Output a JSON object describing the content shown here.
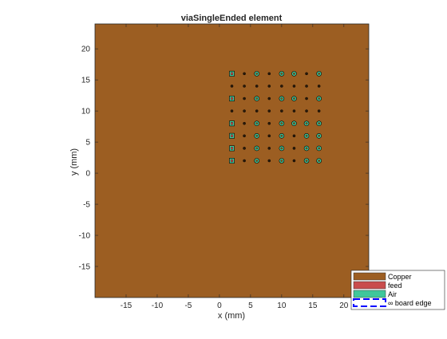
{
  "chart_data": {
    "type": "scatter",
    "title": "viaSingleEnded element",
    "xlabel": "x (mm)",
    "ylabel": "y (mm)",
    "xlim": [
      -20,
      24
    ],
    "ylim": [
      -20,
      24
    ],
    "x_ticks": [
      -15,
      -10,
      -5,
      0,
      5,
      10,
      15,
      20
    ],
    "y_ticks": [
      -15,
      -10,
      -5,
      0,
      5,
      10,
      15,
      20
    ],
    "board_fill": "#9c5e22",
    "via_grid": {
      "x": [
        2,
        4,
        6,
        8,
        10,
        12,
        14,
        16
      ],
      "y": [
        2,
        4,
        6,
        8,
        10,
        12,
        14,
        16
      ]
    },
    "vias": [
      {
        "x": 2,
        "y": 16,
        "type": "feed-air"
      },
      {
        "x": 4,
        "y": 16,
        "type": "pad"
      },
      {
        "x": 6,
        "y": 16,
        "type": "air"
      },
      {
        "x": 8,
        "y": 16,
        "type": "pad"
      },
      {
        "x": 10,
        "y": 16,
        "type": "air"
      },
      {
        "x": 12,
        "y": 16,
        "type": "air"
      },
      {
        "x": 14,
        "y": 16,
        "type": "pad"
      },
      {
        "x": 16,
        "y": 16,
        "type": "air"
      },
      {
        "x": 2,
        "y": 14,
        "type": "pad"
      },
      {
        "x": 4,
        "y": 14,
        "type": "pad"
      },
      {
        "x": 6,
        "y": 14,
        "type": "pad"
      },
      {
        "x": 8,
        "y": 14,
        "type": "pad"
      },
      {
        "x": 10,
        "y": 14,
        "type": "pad"
      },
      {
        "x": 12,
        "y": 14,
        "type": "pad"
      },
      {
        "x": 14,
        "y": 14,
        "type": "pad"
      },
      {
        "x": 16,
        "y": 14,
        "type": "pad"
      },
      {
        "x": 2,
        "y": 12,
        "type": "feed-air"
      },
      {
        "x": 4,
        "y": 12,
        "type": "pad"
      },
      {
        "x": 6,
        "y": 12,
        "type": "air"
      },
      {
        "x": 8,
        "y": 12,
        "type": "pad"
      },
      {
        "x": 10,
        "y": 12,
        "type": "air"
      },
      {
        "x": 12,
        "y": 12,
        "type": "air"
      },
      {
        "x": 14,
        "y": 12,
        "type": "pad"
      },
      {
        "x": 16,
        "y": 12,
        "type": "air"
      },
      {
        "x": 2,
        "y": 10,
        "type": "pad"
      },
      {
        "x": 4,
        "y": 10,
        "type": "pad"
      },
      {
        "x": 6,
        "y": 10,
        "type": "pad"
      },
      {
        "x": 8,
        "y": 10,
        "type": "pad"
      },
      {
        "x": 10,
        "y": 10,
        "type": "pad"
      },
      {
        "x": 12,
        "y": 10,
        "type": "pad"
      },
      {
        "x": 14,
        "y": 10,
        "type": "pad"
      },
      {
        "x": 16,
        "y": 10,
        "type": "pad"
      },
      {
        "x": 2,
        "y": 8,
        "type": "feed-air"
      },
      {
        "x": 4,
        "y": 8,
        "type": "pad"
      },
      {
        "x": 6,
        "y": 8,
        "type": "air"
      },
      {
        "x": 8,
        "y": 8,
        "type": "pad"
      },
      {
        "x": 10,
        "y": 8,
        "type": "air"
      },
      {
        "x": 12,
        "y": 8,
        "type": "air"
      },
      {
        "x": 14,
        "y": 8,
        "type": "air"
      },
      {
        "x": 16,
        "y": 8,
        "type": "air"
      },
      {
        "x": 2,
        "y": 6,
        "type": "feed-air"
      },
      {
        "x": 4,
        "y": 6,
        "type": "pad"
      },
      {
        "x": 6,
        "y": 6,
        "type": "air"
      },
      {
        "x": 8,
        "y": 6,
        "type": "pad"
      },
      {
        "x": 10,
        "y": 6,
        "type": "air"
      },
      {
        "x": 12,
        "y": 6,
        "type": "pad"
      },
      {
        "x": 14,
        "y": 6,
        "type": "air"
      },
      {
        "x": 16,
        "y": 6,
        "type": "air"
      },
      {
        "x": 2,
        "y": 4,
        "type": "feed-air"
      },
      {
        "x": 4,
        "y": 4,
        "type": "pad"
      },
      {
        "x": 6,
        "y": 4,
        "type": "air"
      },
      {
        "x": 8,
        "y": 4,
        "type": "pad"
      },
      {
        "x": 10,
        "y": 4,
        "type": "air"
      },
      {
        "x": 12,
        "y": 4,
        "type": "pad"
      },
      {
        "x": 14,
        "y": 4,
        "type": "air"
      },
      {
        "x": 16,
        "y": 4,
        "type": "air"
      },
      {
        "x": 2,
        "y": 2,
        "type": "feed-air"
      },
      {
        "x": 4,
        "y": 2,
        "type": "pad"
      },
      {
        "x": 6,
        "y": 2,
        "type": "air"
      },
      {
        "x": 8,
        "y": 2,
        "type": "pad"
      },
      {
        "x": 10,
        "y": 2,
        "type": "air"
      },
      {
        "x": 12,
        "y": 2,
        "type": "pad"
      },
      {
        "x": 14,
        "y": 2,
        "type": "air"
      },
      {
        "x": 16,
        "y": 2,
        "type": "air"
      }
    ],
    "legend": {
      "placement": "bottom-right",
      "entries": [
        {
          "label": "Copper",
          "color": "#9c5e22",
          "style": "patch"
        },
        {
          "label": "feed",
          "color": "#c94d4d",
          "style": "patch"
        },
        {
          "label": "Air",
          "color": "#3fc79b",
          "style": "patch"
        },
        {
          "label": "∞ board edge",
          "color": "#0000ff",
          "style": "dashed"
        }
      ]
    }
  }
}
